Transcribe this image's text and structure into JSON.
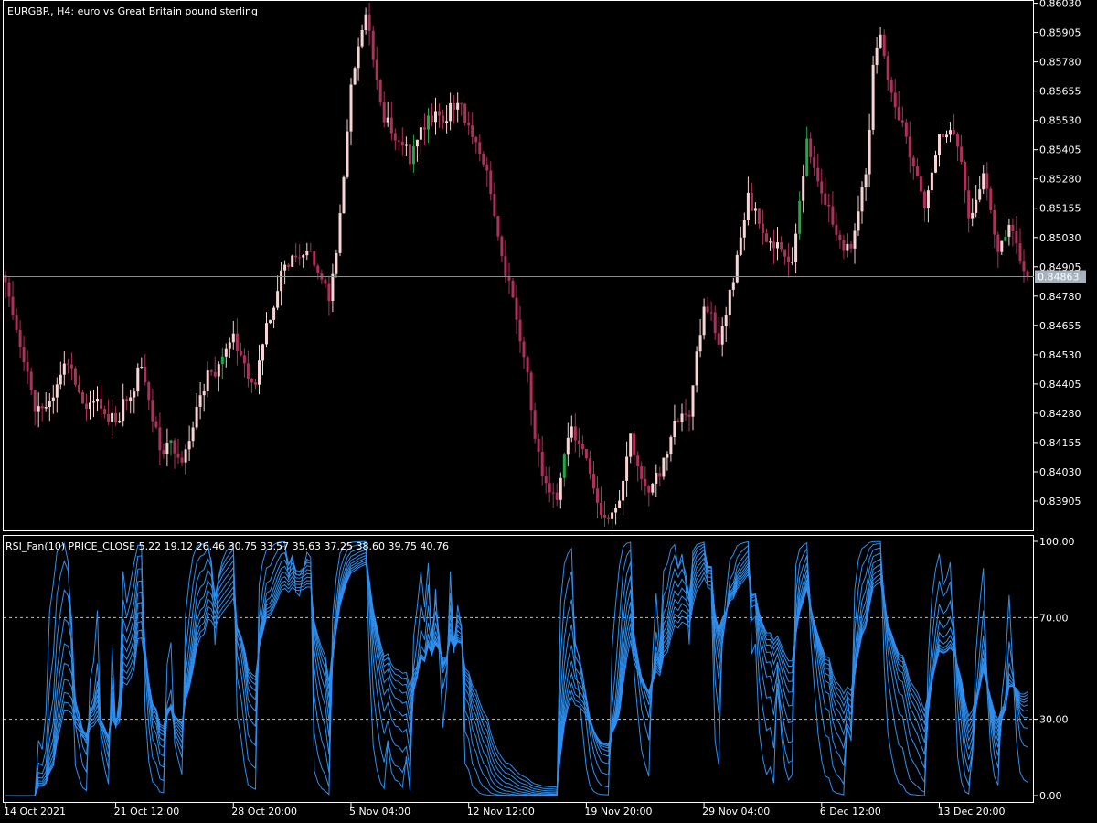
{
  "chart_data": [
    {
      "type": "candlestick",
      "title": "EURGBP., H4:  euro vs Great Britain pound sterling",
      "symbol": "EURGBP.",
      "timeframe": "H4",
      "description": "euro vs Great Britain pound sterling",
      "ylim": [
        0.8378,
        0.8604
      ],
      "y_ticks": [
        "0.86030",
        "0.85905",
        "0.85780",
        "0.85655",
        "0.85530",
        "0.85405",
        "0.85280",
        "0.85155",
        "0.85030",
        "0.84905",
        "0.84780",
        "0.84655",
        "0.84530",
        "0.84405",
        "0.84280",
        "0.84155",
        "0.84030",
        "0.83905"
      ],
      "current_price": "0.84863",
      "colors": {
        "up": "#f9d4d4",
        "down": "#b0305c",
        "up_alt": "#1fa84a",
        "price_line": "#8c8c8c",
        "price_tag_bg": "#a7b2bf"
      },
      "grid": false,
      "trend_points": [
        {
          "bar": 0,
          "price": 0.8487
        },
        {
          "bar": 8,
          "price": 0.843
        },
        {
          "bar": 16,
          "price": 0.8452
        },
        {
          "bar": 22,
          "price": 0.843
        },
        {
          "bar": 30,
          "price": 0.8427
        },
        {
          "bar": 37,
          "price": 0.845
        },
        {
          "bar": 42,
          "price": 0.8415
        },
        {
          "bar": 48,
          "price": 0.8412
        },
        {
          "bar": 55,
          "price": 0.8445
        },
        {
          "bar": 62,
          "price": 0.8455
        },
        {
          "bar": 68,
          "price": 0.844
        },
        {
          "bar": 75,
          "price": 0.849
        },
        {
          "bar": 82,
          "price": 0.8505
        },
        {
          "bar": 88,
          "price": 0.8475
        },
        {
          "bar": 90,
          "price": 0.8495
        },
        {
          "bar": 94,
          "price": 0.857
        },
        {
          "bar": 98,
          "price": 0.859
        },
        {
          "bar": 102,
          "price": 0.856
        },
        {
          "bar": 106,
          "price": 0.8545
        },
        {
          "bar": 110,
          "price": 0.8535
        },
        {
          "bar": 114,
          "price": 0.855
        },
        {
          "bar": 118,
          "price": 0.8555
        },
        {
          "bar": 122,
          "price": 0.856
        },
        {
          "bar": 126,
          "price": 0.855
        },
        {
          "bar": 130,
          "price": 0.8535
        },
        {
          "bar": 134,
          "price": 0.851
        },
        {
          "bar": 138,
          "price": 0.8475
        },
        {
          "bar": 142,
          "price": 0.844
        },
        {
          "bar": 146,
          "price": 0.84
        },
        {
          "bar": 150,
          "price": 0.8385
        },
        {
          "bar": 154,
          "price": 0.842
        },
        {
          "bar": 158,
          "price": 0.8405
        },
        {
          "bar": 162,
          "price": 0.8392
        },
        {
          "bar": 166,
          "price": 0.839
        },
        {
          "bar": 170,
          "price": 0.8415
        },
        {
          "bar": 174,
          "price": 0.8395
        },
        {
          "bar": 178,
          "price": 0.8405
        },
        {
          "bar": 182,
          "price": 0.842
        },
        {
          "bar": 186,
          "price": 0.8425
        },
        {
          "bar": 190,
          "price": 0.8475
        },
        {
          "bar": 194,
          "price": 0.846
        },
        {
          "bar": 198,
          "price": 0.8485
        },
        {
          "bar": 202,
          "price": 0.852
        },
        {
          "bar": 206,
          "price": 0.851
        },
        {
          "bar": 210,
          "price": 0.85
        },
        {
          "bar": 214,
          "price": 0.849
        },
        {
          "bar": 218,
          "price": 0.854
        },
        {
          "bar": 222,
          "price": 0.8515
        },
        {
          "bar": 226,
          "price": 0.8505
        },
        {
          "bar": 230,
          "price": 0.85
        },
        {
          "bar": 234,
          "price": 0.853
        },
        {
          "bar": 236,
          "price": 0.8575
        },
        {
          "bar": 238,
          "price": 0.859
        },
        {
          "bar": 242,
          "price": 0.8555
        },
        {
          "bar": 246,
          "price": 0.854
        },
        {
          "bar": 250,
          "price": 0.852
        },
        {
          "bar": 254,
          "price": 0.8545
        },
        {
          "bar": 258,
          "price": 0.8545
        },
        {
          "bar": 262,
          "price": 0.851
        },
        {
          "bar": 266,
          "price": 0.8525
        },
        {
          "bar": 270,
          "price": 0.85
        },
        {
          "bar": 274,
          "price": 0.8505
        },
        {
          "bar": 278,
          "price": 0.849
        }
      ],
      "bar_count": 279
    },
    {
      "type": "line",
      "title": "RSI_Fan(10) PRICE_CLOSE 5.22 19.12 26.46 30.75 33.57 35.63 37.25 38.60 39.75 40.76",
      "ylim": [
        0,
        100
      ],
      "y_ticks": [
        "100.00",
        "70.00",
        "30.00",
        "0.00"
      ],
      "levels": [
        70,
        30
      ],
      "line_color": "#2f8fef",
      "series": [
        {
          "name": "",
          "last": 5.22
        },
        {
          "name": "",
          "last": 19.12
        },
        {
          "name": "",
          "last": 26.46
        },
        {
          "name": "",
          "last": 30.75
        },
        {
          "name": "",
          "last": 33.57
        },
        {
          "name": "",
          "last": 35.63
        },
        {
          "name": "",
          "last": 37.25
        },
        {
          "name": "",
          "last": 38.6
        },
        {
          "name": "",
          "last": 39.75
        },
        {
          "name": "",
          "last": 40.76
        }
      ]
    }
  ],
  "x_axis": {
    "labels": [
      "14 Oct 2021",
      "21 Oct 12:00",
      "28 Oct 20:00",
      "5 Nov 04:00",
      "12 Nov 12:00",
      "19 Nov 20:00",
      "29 Nov 04:00",
      "6 Dec 12:00",
      "13 Dec 20:00"
    ],
    "label_bars": [
      0,
      30,
      62,
      94,
      126,
      158,
      190,
      222,
      254
    ]
  }
}
